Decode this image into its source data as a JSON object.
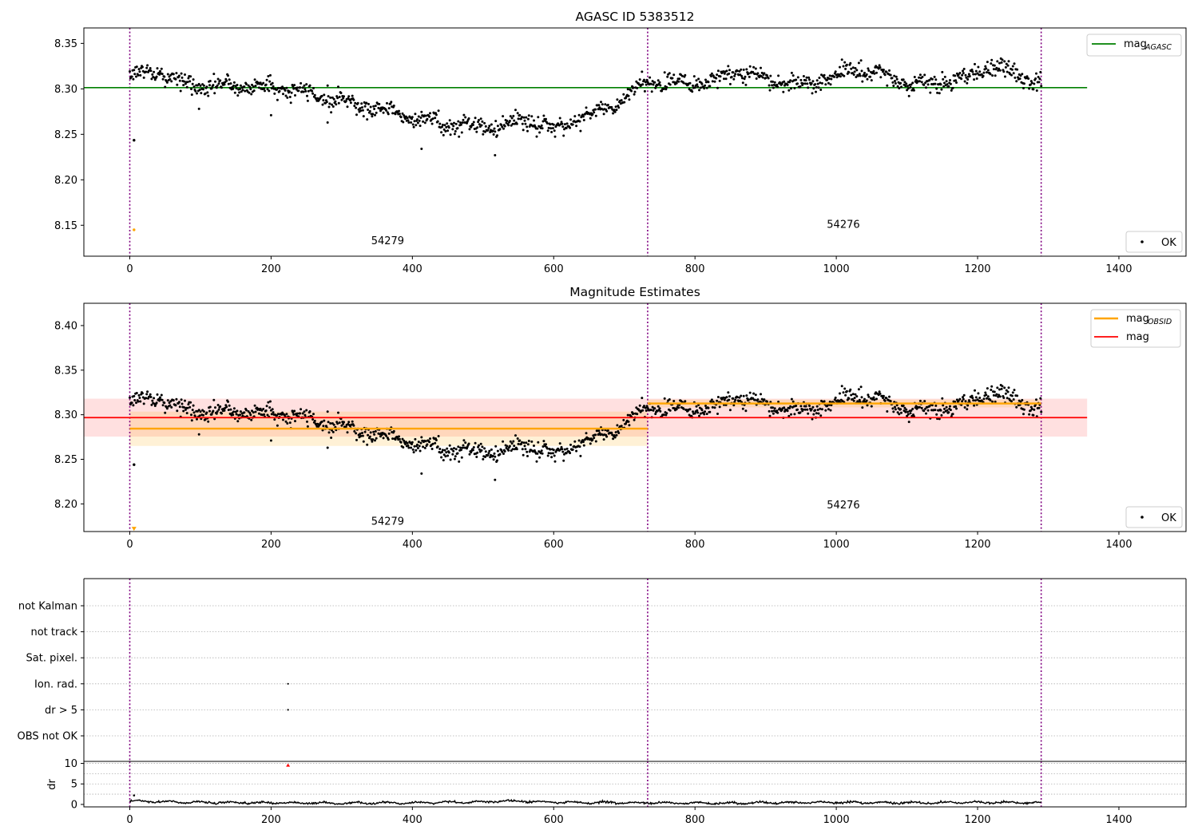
{
  "chart_data": [
    {
      "type": "scatter",
      "title": "AGASC ID 5383512",
      "xlim": [
        -65,
        1495
      ],
      "ylim": [
        8.116,
        8.367
      ],
      "xticks": [
        0,
        200,
        400,
        600,
        800,
        1000,
        1200,
        1400
      ],
      "yticks": [
        8.15,
        8.2,
        8.25,
        8.3,
        8.35
      ],
      "vlines": [
        0,
        733,
        1290
      ],
      "reference_lines": [
        {
          "name": "mag_AGASC",
          "label_main": "mag",
          "label_sub": "AGASC",
          "color": "#008000",
          "y": 8.3013,
          "x": [
            -65,
            1355
          ]
        }
      ],
      "annotations": [
        {
          "text": "54279",
          "x": 365,
          "y": 8.129
        },
        {
          "text": "54276",
          "x": 1010,
          "y": 8.147
        }
      ],
      "legend_top": {
        "position": "upper right",
        "entries": [
          "mag_AGASC"
        ]
      },
      "legend_bottom": {
        "position": "lower right",
        "entries": [
          {
            "label": "OK",
            "marker": "point"
          }
        ]
      },
      "outliers": [
        {
          "x": 6,
          "y": 8.2435,
          "color": "#000000"
        },
        {
          "x": 6,
          "y": 8.145,
          "color": "#ffa500"
        }
      ],
      "series_trend": {
        "name": "OK",
        "color": "#000000",
        "n_points": 1290,
        "scatter_sd": 0.0045,
        "points": [
          [
            0,
            8.315
          ],
          [
            40,
            8.319
          ],
          [
            80,
            8.304
          ],
          [
            120,
            8.303
          ],
          [
            160,
            8.303
          ],
          [
            200,
            8.302
          ],
          [
            240,
            8.297
          ],
          [
            280,
            8.291
          ],
          [
            320,
            8.283
          ],
          [
            360,
            8.277
          ],
          [
            400,
            8.269
          ],
          [
            440,
            8.262
          ],
          [
            480,
            8.259
          ],
          [
            520,
            8.259
          ],
          [
            560,
            8.266
          ],
          [
            600,
            8.256
          ],
          [
            640,
            8.269
          ],
          [
            680,
            8.281
          ],
          [
            700,
            8.288
          ],
          [
            733,
            8.308
          ],
          [
            780,
            8.308
          ],
          [
            820,
            8.308
          ],
          [
            860,
            8.318
          ],
          [
            900,
            8.312
          ],
          [
            940,
            8.305
          ],
          [
            980,
            8.309
          ],
          [
            1020,
            8.321
          ],
          [
            1060,
            8.317
          ],
          [
            1100,
            8.305
          ],
          [
            1140,
            8.307
          ],
          [
            1180,
            8.311
          ],
          [
            1220,
            8.326
          ],
          [
            1260,
            8.314
          ],
          [
            1290,
            8.306
          ]
        ]
      }
    },
    {
      "type": "scatter",
      "title": "Magnitude Estimates",
      "xlim": [
        -65,
        1495
      ],
      "ylim": [
        8.169,
        8.425
      ],
      "xticks": [
        0,
        200,
        400,
        600,
        800,
        1000,
        1200,
        1400
      ],
      "yticks": [
        8.2,
        8.25,
        8.3,
        8.35,
        8.4
      ],
      "vlines": [
        0,
        733,
        1290
      ],
      "obsid_means": [
        {
          "name": "mag_OBSID",
          "obsid": "54279",
          "x": [
            0,
            733
          ],
          "mean": 8.2844,
          "band": [
            8.265,
            8.3035
          ],
          "color": "#ffa500"
        },
        {
          "name": "mag_OBSID",
          "obsid": "54276",
          "x": [
            733,
            1290
          ],
          "mean": 8.3126,
          "band": [
            8.3083,
            8.317
          ],
          "color": "#ffa500"
        }
      ],
      "mag_line": {
        "name": "mag",
        "y": 8.2968,
        "band": [
          8.2755,
          8.318
        ],
        "x": [
          -65,
          1355
        ],
        "color": "#ff0000"
      },
      "annotations": [
        {
          "text": "54279",
          "x": 365,
          "y": 8.1765
        },
        {
          "text": "54276",
          "x": 1010,
          "y": 8.195
        }
      ],
      "legend_top": {
        "position": "upper right",
        "entries": [
          {
            "label_main": "mag",
            "label_sub": "OBSID",
            "color": "#ffa500"
          },
          {
            "label_main": "mag",
            "label_sub": "",
            "color": "#ff0000"
          }
        ]
      },
      "legend_bottom": {
        "position": "lower right",
        "entries": [
          {
            "label": "OK",
            "marker": "point"
          }
        ]
      },
      "outliers": [
        {
          "x": 6,
          "y": 8.244,
          "color": "#000000"
        },
        {
          "x": 6,
          "y": 8.172,
          "color": "#ffa500",
          "marker": "triangle-down"
        }
      ],
      "series": "same OK points as first panel"
    },
    {
      "type": "scatter",
      "title": "",
      "xlim": [
        -65,
        1495
      ],
      "categories": [
        "OBS not OK",
        "dr > 5",
        "Ion. rad.",
        "Sat. pixel.",
        "not track",
        "not Kalman"
      ],
      "flag_points": [
        {
          "category": "Ion. rad.",
          "x": 224
        },
        {
          "category": "dr > 5",
          "x": 224
        }
      ],
      "vlines": [
        0,
        733,
        1290
      ],
      "grid": "dotted horizontal"
    },
    {
      "type": "line",
      "ylabel": "dr",
      "xlim": [
        -65,
        1495
      ],
      "ylim": [
        -0.6,
        10.5
      ],
      "yticks": [
        0,
        5,
        10
      ],
      "xticks": [
        0,
        200,
        400,
        600,
        800,
        1000,
        1200,
        1400
      ],
      "vlines": [
        0,
        733,
        1290
      ],
      "hlines": [
        2.5,
        5,
        7.5,
        10
      ],
      "outliers": [
        {
          "x": 6,
          "y": 2.2,
          "color": "#000000"
        },
        {
          "x": 224,
          "y": 9.6,
          "color": "#ff0000",
          "marker": "triangle-up"
        }
      ],
      "series_trend": {
        "name": "dr",
        "color": "#000000",
        "points": [
          [
            0,
            0.8
          ],
          [
            100,
            0.5
          ],
          [
            200,
            0.4
          ],
          [
            300,
            0.3
          ],
          [
            400,
            0.4
          ],
          [
            500,
            0.6
          ],
          [
            530,
            0.9
          ],
          [
            600,
            0.5
          ],
          [
            700,
            0.4
          ],
          [
            800,
            0.3
          ],
          [
            900,
            0.4
          ],
          [
            1000,
            0.5
          ],
          [
            1100,
            0.4
          ],
          [
            1200,
            0.5
          ],
          [
            1290,
            0.4
          ]
        ]
      }
    }
  ]
}
